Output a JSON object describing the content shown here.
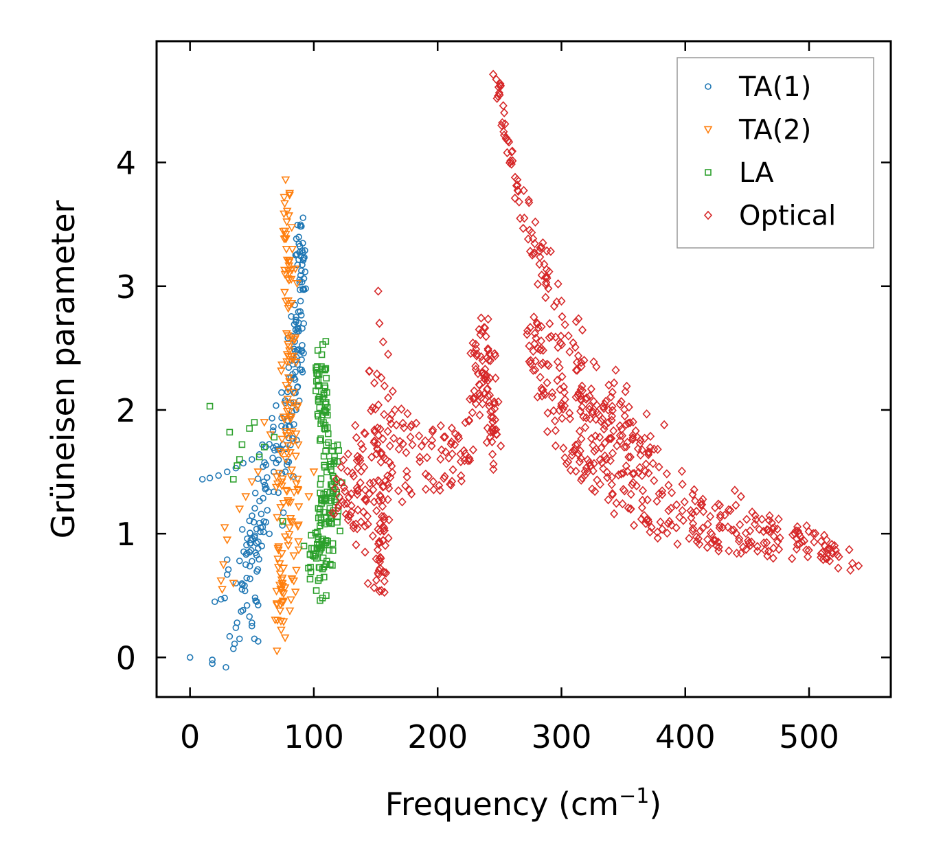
{
  "chart_data": {
    "type": "scatter",
    "title": "",
    "xlabel": "Frequency (cm",
    "xlabel_superscript": "−1",
    "xlabel_close": ")",
    "ylabel": "Grüneisen parameter",
    "xlim": [
      -27,
      566
    ],
    "ylim": [
      -0.32,
      4.98
    ],
    "xticks": [
      0,
      100,
      200,
      300,
      400,
      500
    ],
    "xtick_labels": [
      "0",
      "100",
      "200",
      "300",
      "400",
      "500"
    ],
    "yticks": [
      0,
      1,
      2,
      3,
      4
    ],
    "ytick_labels": [
      "0",
      "1",
      "2",
      "3",
      "4"
    ],
    "grid": false,
    "legend_position": "top-right",
    "series": [
      {
        "name": "TA(1)",
        "color": "#1f77b4",
        "marker": "circle",
        "clusters": [
          {
            "shape": "points",
            "points": [
              [
                0,
                0
              ],
              [
                18,
                -0.05
              ],
              [
                18,
                -0.02
              ],
              [
                29,
                -0.08
              ],
              [
                20,
                0.45
              ],
              [
                25,
                0.47
              ],
              [
                28,
                0.48
              ],
              [
                32,
                0.17
              ],
              [
                35,
                0.07
              ],
              [
                36,
                0.11
              ],
              [
                37,
                0.24
              ],
              [
                38,
                0.28
              ],
              [
                40,
                0.15
              ],
              [
                52,
                0.15
              ],
              [
                55,
                0.13
              ],
              [
                46,
                0.42
              ],
              [
                48,
                0.33
              ],
              [
                50,
                0.28
              ],
              [
                42,
                0.55
              ],
              [
                44,
                0.58
              ],
              [
                30,
                0.67
              ],
              [
                31,
                0.71
              ],
              [
                30,
                0.79
              ],
              [
                37,
                0.6
              ],
              [
                40,
                0.78
              ],
              [
                45,
                0.75
              ],
              [
                48,
                0.85
              ],
              [
                55,
                0.88
              ],
              [
                58,
                0.9
              ],
              [
                10,
                1.44
              ],
              [
                16,
                1.45
              ],
              [
                23,
                1.47
              ],
              [
                30,
                1.5
              ],
              [
                37,
                1.53
              ],
              [
                43,
                1.57
              ],
              [
                50,
                1.6
              ],
              [
                56,
                1.64
              ]
            ]
          },
          {
            "shape": "band",
            "count": 200,
            "seed": 11,
            "path": [
              [
                45,
                0.5,
                0.35,
                6
              ],
              [
                55,
                1.0,
                0.4,
                7
              ],
              [
                70,
                1.6,
                0.3,
                12
              ],
              [
                80,
                2.0,
                0.4,
                6
              ],
              [
                86,
                2.6,
                0.4,
                5
              ],
              [
                90,
                3.0,
                0.35,
                4
              ],
              [
                88,
                3.4,
                0.2,
                3
              ]
            ]
          }
        ]
      },
      {
        "name": "TA(2)",
        "color": "#ff7f0e",
        "marker": "triangle",
        "clusters": [
          {
            "shape": "band",
            "count": 170,
            "seed": 5,
            "path": [
              [
                68,
                0.15,
                0.2,
                6
              ],
              [
                78,
                0.5,
                0.35,
                9
              ],
              [
                80,
                1.0,
                0.45,
                10
              ],
              [
                78,
                1.5,
                0.4,
                10
              ],
              [
                80,
                2.0,
                0.4,
                7
              ],
              [
                82,
                2.6,
                0.45,
                5
              ],
              [
                80,
                3.2,
                0.45,
                4
              ],
              [
                78,
                3.7,
                0.2,
                3
              ]
            ]
          },
          {
            "shape": "points",
            "points": [
              [
                26,
                0.55
              ],
              [
                25,
                0.62
              ],
              [
                27,
                0.75
              ],
              [
                30,
                0.95
              ],
              [
                35,
                0.6
              ],
              [
                28,
                1.05
              ],
              [
                40,
                1.2
              ],
              [
                45,
                1.3
              ],
              [
                50,
                1.42
              ],
              [
                55,
                1.5
              ],
              [
                60,
                1.9
              ],
              [
                65,
                1.8
              ],
              [
                96,
                1.3
              ],
              [
                100,
                1.5
              ]
            ]
          }
        ]
      },
      {
        "name": "LA",
        "color": "#2ca02c",
        "marker": "square",
        "clusters": [
          {
            "shape": "band",
            "count": 170,
            "seed": 23,
            "path": [
              [
                100,
                0.7,
                0.15,
                6
              ],
              [
                110,
                1.0,
                0.25,
                9
              ],
              [
                115,
                1.2,
                0.2,
                10
              ],
              [
                112,
                1.6,
                0.35,
                7
              ],
              [
                108,
                2.0,
                0.3,
                5
              ],
              [
                105,
                2.4,
                0.25,
                4
              ]
            ]
          },
          {
            "shape": "points",
            "points": [
              [
                16,
                2.03
              ],
              [
                32,
                1.82
              ],
              [
                38,
                1.55
              ],
              [
                35,
                1.44
              ],
              [
                40,
                1.6
              ],
              [
                42,
                1.72
              ],
              [
                48,
                1.85
              ],
              [
                52,
                1.9
              ],
              [
                56,
                1.62
              ],
              [
                60,
                1.7
              ],
              [
                68,
                1.78
              ],
              [
                75,
                1.1
              ],
              [
                92,
                0.9
              ],
              [
                97,
                0.83
              ],
              [
                102,
                0.54
              ],
              [
                105,
                0.46
              ],
              [
                110,
                0.5
              ],
              [
                107,
                0.48
              ]
            ]
          }
        ]
      },
      {
        "name": "Optical",
        "color": "#d62728",
        "marker": "diamond",
        "clusters": [
          {
            "shape": "band",
            "count": 230,
            "seed": 31,
            "path": [
              [
                120,
                1.3,
                0.15,
                8
              ],
              [
                135,
                1.4,
                0.4,
                6
              ],
              [
                148,
                1.5,
                1.0,
                5
              ],
              [
                152,
                1.4,
                0.9,
                4
              ],
              [
                155,
                0.7,
                0.2,
                3
              ],
              [
                160,
                1.7,
                0.6,
                6
              ],
              [
                175,
                1.6,
                0.3,
                10
              ],
              [
                200,
                1.6,
                0.3,
                12
              ],
              [
                225,
                1.6,
                0.3,
                6
              ]
            ]
          },
          {
            "shape": "band",
            "count": 90,
            "seed": 41,
            "path": [
              [
                228,
                2.0,
                0.4,
                5
              ],
              [
                235,
                2.5,
                0.35,
                5
              ],
              [
                242,
                2.1,
                0.35,
                5
              ],
              [
                248,
                1.8,
                0.3,
                4
              ]
            ]
          },
          {
            "shape": "band",
            "count": 140,
            "seed": 47,
            "path": [
              [
                247,
                4.7,
                0.05,
                3
              ],
              [
                255,
                4.2,
                0.08,
                4
              ],
              [
                265,
                3.8,
                0.1,
                4
              ],
              [
                278,
                3.3,
                0.15,
                5
              ],
              [
                292,
                3.0,
                0.25,
                6
              ],
              [
                310,
                2.5,
                0.3,
                7
              ],
              [
                330,
                2.2,
                0.3,
                7
              ],
              [
                350,
                1.9,
                0.3,
                7
              ],
              [
                370,
                1.6,
                0.3,
                7
              ]
            ]
          },
          {
            "shape": "band",
            "count": 380,
            "seed": 53,
            "path": [
              [
                275,
                2.6,
                0.2,
                5
              ],
              [
                290,
                2.3,
                0.4,
                8
              ],
              [
                310,
                1.9,
                0.4,
                10
              ],
              [
                330,
                1.7,
                0.45,
                12
              ],
              [
                355,
                1.55,
                0.45,
                14
              ],
              [
                380,
                1.3,
                0.35,
                15
              ],
              [
                410,
                1.1,
                0.2,
                15
              ],
              [
                450,
                1.0,
                0.2,
                15
              ],
              [
                490,
                0.95,
                0.15,
                14
              ],
              [
                525,
                0.8,
                0.1,
                10
              ]
            ]
          },
          {
            "shape": "points",
            "points": [
              [
                152,
                2.96
              ],
              [
                153,
                2.7
              ],
              [
                156,
                2.55
              ],
              [
                160,
                2.45
              ],
              [
                270,
                3.55
              ],
              [
                285,
                3.35
              ],
              [
                440,
                1.35
              ],
              [
                445,
                1.3
              ],
              [
                383,
                1.88
              ],
              [
                540,
                0.74
              ],
              [
                535,
                0.76
              ],
              [
                245,
                1.52
              ],
              [
                210,
                1.4
              ],
              [
                190,
                1.75
              ],
              [
                205,
                1.78
              ]
            ]
          }
        ]
      }
    ]
  }
}
